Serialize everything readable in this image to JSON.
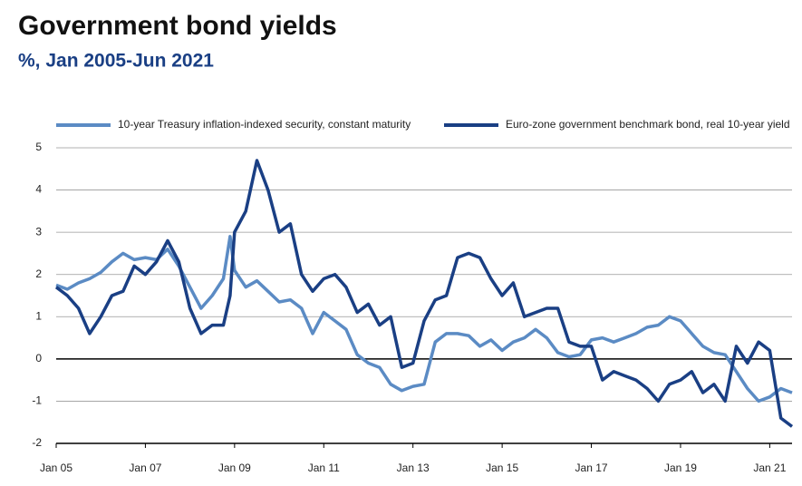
{
  "chart_data": {
    "type": "line",
    "title": "Government bond yields",
    "subtitle": "%, Jan 2005-Jun 2021",
    "x": [
      2005,
      2005.25,
      2005.5,
      2005.75,
      2006,
      2006.25,
      2006.5,
      2006.75,
      2007,
      2007.25,
      2007.5,
      2007.75,
      2008,
      2008.25,
      2008.5,
      2008.75,
      2008.9,
      2009,
      2009.25,
      2009.5,
      2009.75,
      2010,
      2010.25,
      2010.5,
      2010.75,
      2011,
      2011.25,
      2011.5,
      2011.75,
      2012,
      2012.25,
      2012.5,
      2012.75,
      2013,
      2013.25,
      2013.5,
      2013.75,
      2014,
      2014.25,
      2014.5,
      2014.75,
      2015,
      2015.25,
      2015.5,
      2015.75,
      2016,
      2016.25,
      2016.5,
      2016.75,
      2017,
      2017.25,
      2017.5,
      2017.75,
      2018,
      2018.25,
      2018.5,
      2018.75,
      2019,
      2019.25,
      2019.5,
      2019.75,
      2020,
      2020.25,
      2020.5,
      2020.75,
      2021,
      2021.25,
      2021.5
    ],
    "series": [
      {
        "name": "10-year Treasury inflation-indexed security, constant maturity",
        "color": "#5b8bc4",
        "values": [
          1.75,
          1.65,
          1.8,
          1.9,
          2.05,
          2.3,
          2.5,
          2.35,
          2.4,
          2.35,
          2.6,
          2.2,
          1.7,
          1.2,
          1.5,
          1.9,
          2.9,
          2.1,
          1.7,
          1.85,
          1.6,
          1.35,
          1.4,
          1.2,
          0.6,
          1.1,
          0.9,
          0.7,
          0.1,
          -0.1,
          -0.2,
          -0.6,
          -0.75,
          -0.65,
          -0.6,
          0.4,
          0.6,
          0.6,
          0.55,
          0.3,
          0.45,
          0.2,
          0.4,
          0.5,
          0.7,
          0.5,
          0.15,
          0.05,
          0.1,
          0.45,
          0.5,
          0.4,
          0.5,
          0.6,
          0.75,
          0.8,
          1.0,
          0.9,
          0.6,
          0.3,
          0.15,
          0.1,
          -0.3,
          -0.7,
          -1.0,
          -0.9,
          -0.7,
          -0.8
        ]
      },
      {
        "name": "Euro-zone government benchmark bond, real 10-year yield",
        "color": "#1a3f84",
        "values": [
          1.7,
          1.5,
          1.2,
          0.6,
          1.0,
          1.5,
          1.6,
          2.2,
          2.0,
          2.3,
          2.8,
          2.3,
          1.2,
          0.6,
          0.8,
          0.8,
          1.5,
          3.0,
          3.5,
          4.7,
          4.0,
          3.0,
          3.2,
          2.0,
          1.6,
          1.9,
          2.0,
          1.7,
          1.1,
          1.3,
          0.8,
          1.0,
          -0.2,
          -0.1,
          0.9,
          1.4,
          1.5,
          2.4,
          2.5,
          2.4,
          1.9,
          1.5,
          1.8,
          1.0,
          1.1,
          1.2,
          1.2,
          0.4,
          0.3,
          0.3,
          -0.5,
          -0.3,
          -0.4,
          -0.5,
          -0.7,
          -1.0,
          -0.6,
          -0.5,
          -0.3,
          -0.8,
          -0.6,
          -1.0,
          0.3,
          -0.1,
          0.4,
          0.2,
          -1.4,
          -1.6
        ]
      }
    ],
    "xlim": [
      2005,
      2021.5
    ],
    "xticks": [
      {
        "value": 2005,
        "label": "Jan 05"
      },
      {
        "value": 2007,
        "label": "Jan 07"
      },
      {
        "value": 2009,
        "label": "Jan 09"
      },
      {
        "value": 2011,
        "label": "Jan 11"
      },
      {
        "value": 2013,
        "label": "Jan 13"
      },
      {
        "value": 2015,
        "label": "Jan 15"
      },
      {
        "value": 2017,
        "label": "Jan 17"
      },
      {
        "value": 2019,
        "label": "Jan 19"
      },
      {
        "value": 2021,
        "label": "Jan 21"
      }
    ],
    "ylim": [
      -2,
      5
    ],
    "yticks": [
      -2,
      -1,
      0,
      1,
      2,
      3,
      4,
      5
    ],
    "grid": true
  }
}
